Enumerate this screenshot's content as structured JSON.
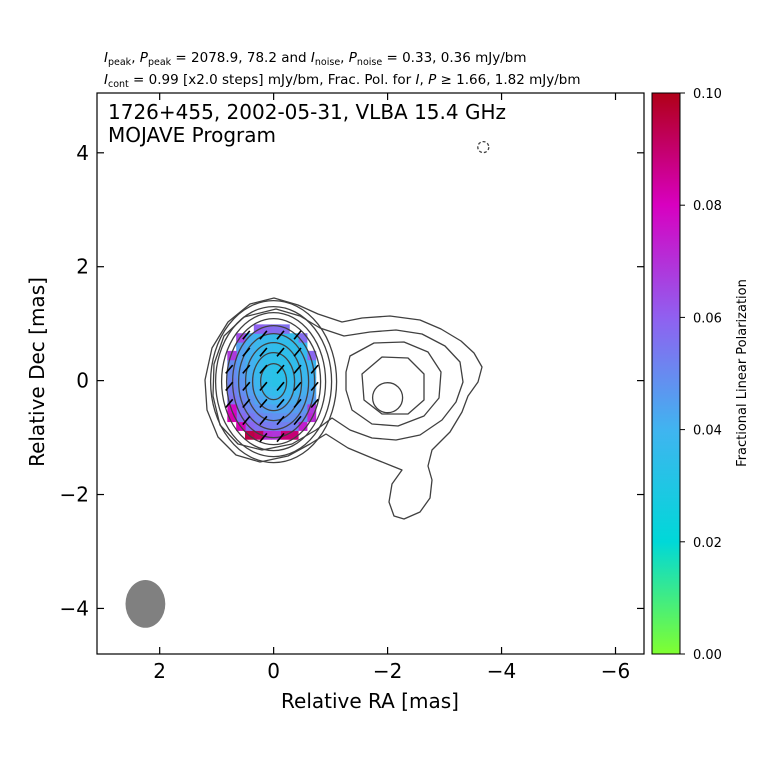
{
  "chart_data": {
    "type": "contour_map",
    "header": {
      "line1": {
        "i_peak_sym": "I",
        "i_peak_sub": "peak",
        "p_peak_sym": "P",
        "p_peak_sub": "peak",
        "peak_values": " = 2078.9, 78.2 and ",
        "i_noise_sym": "I",
        "i_noise_sub": "noise",
        "p_noise_sym": "P",
        "p_noise_sub": "noise",
        "noise_values": " = 0.33, 0.36 mJy/bm"
      },
      "line2": {
        "i_cont_sym": "I",
        "i_cont_sub": "cont",
        "cont_values": " = 0.99 [x2.0 steps] mJy/bm, Frac. Pol. for ",
        "i_sym": "I",
        "p_sym": "P",
        "threshold": " ≥  1.66, 1.82 mJy/bm"
      }
    },
    "annotation": {
      "line1": "1726+455, 2002-05-31, VLBA 15.4 GHz",
      "line2": "MOJAVE Program"
    },
    "xlabel": "Relative RA [mas]",
    "ylabel": "Relative Dec [mas]",
    "xlim": [
      3.1,
      -6.5
    ],
    "ylim": [
      -4.8,
      5.05
    ],
    "xticks": [
      2,
      0,
      -2,
      -4,
      -6
    ],
    "xtick_labels": [
      "2",
      "0",
      "−2",
      "−4",
      "−6"
    ],
    "yticks": [
      -4,
      -2,
      0,
      2,
      4
    ],
    "ytick_labels": [
      "−4",
      "−2",
      "0",
      "2",
      "4"
    ],
    "colorbar": {
      "label": "Fractional Linear Polarization",
      "range": [
        0.0,
        0.1
      ],
      "ticks": [
        0.0,
        0.02,
        0.04,
        0.06,
        0.08,
        0.1
      ],
      "tick_labels": [
        "0.00",
        "0.02",
        "0.04",
        "0.06",
        "0.08",
        "0.10"
      ],
      "colors": [
        "#80ff30",
        "#00d8d8",
        "#40b4f0",
        "#9060f0",
        "#d800c0",
        "#b00018"
      ]
    },
    "core": {
      "x": 0.0,
      "y": 0.0
    },
    "contour_levels_mjy": [
      0.99,
      1.98,
      3.96,
      7.92,
      15.8,
      31.7,
      63.4,
      127,
      253,
      507,
      1014,
      2028
    ],
    "jet_component": {
      "x": -2.0,
      "y": -0.3
    },
    "negative_contour": {
      "x": -3.68,
      "y": 4.1
    },
    "beam": {
      "x": 2.25,
      "y": -3.92,
      "major_mas": 0.84,
      "minor_mas": 0.7,
      "pa_deg": 0,
      "color": "#808080"
    },
    "polarization_pixel_size_mas": 0.155,
    "polarization_region": {
      "x_center": 0.03,
      "y_center": -0.05,
      "x_halfwidth": 0.85,
      "y_halfwidth": 1.06
    },
    "evpa_deg": 40,
    "evpa_vector_length_mas": 0.19
  }
}
